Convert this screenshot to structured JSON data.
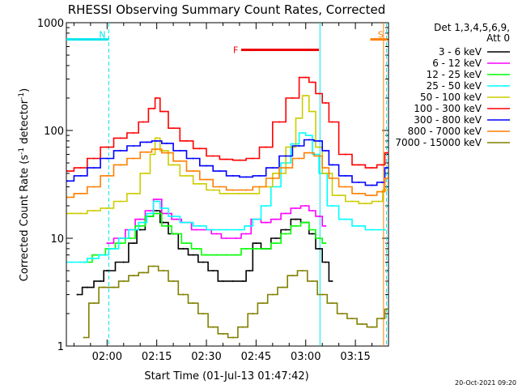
{
  "chart_data": {
    "type": "line",
    "title": "RHESSI Observing Summary Count Rates, Corrected",
    "xlabel": "Start Time (01-Jul-13 01:47:42)",
    "ylabel_main": "Corrected Count Rate (s",
    "ylabel_sup1": "-1",
    "ylabel_mid": " detector",
    "ylabel_sup2": "-1",
    "ylabel_end": ")",
    "y_scale": "log",
    "ylim": [
      1,
      1000
    ],
    "xlim_minutes": [
      107.7,
      205.0
    ],
    "x_ticks": [
      {
        "label": "02:00",
        "t": 120
      },
      {
        "label": "02:15",
        "t": 135
      },
      {
        "label": "02:30",
        "t": 150
      },
      {
        "label": "02:45",
        "t": 165
      },
      {
        "label": "03:00",
        "t": 180
      },
      {
        "label": "03:15",
        "t": 195
      }
    ],
    "y_ticks": [
      {
        "label": "1",
        "v": 1
      },
      {
        "label": "10",
        "v": 10
      },
      {
        "label": "100",
        "v": 100
      },
      {
        "label": "1000",
        "v": 1000
      }
    ],
    "legend_header": [
      "Det 1,3,4,5,6,9,",
      "Att 0"
    ],
    "legend_position": "top-right",
    "footer_date": "20-Oct-2021 09:20",
    "flags": [
      {
        "label": "N",
        "color": "#00e5ee",
        "t_start": 107.7,
        "t_end": 120.5,
        "y": 700
      },
      {
        "label": "F",
        "color": "#ee0000",
        "t_start": 160.5,
        "t_end": 184.0,
        "y": 560
      },
      {
        "label": "S",
        "color": "#ff7f00",
        "t_start": 199.5,
        "t_end": 204.7,
        "y": 700
      }
    ],
    "vertical_markers": [
      {
        "t": 120.5,
        "color": "#00e5ee",
        "dashed": true
      },
      {
        "t": 184.3,
        "color": "#00e5ee",
        "dashed": false
      },
      {
        "t": 203.5,
        "color": "#ff7f00",
        "dashed": false
      },
      {
        "t": 204.4,
        "color": "#00e5ee",
        "dashed": true
      }
    ],
    "series": [
      {
        "name": "3 - 6 keV",
        "color": "#000000",
        "x": [
          111,
          114,
          118,
          120,
          125,
          128,
          130,
          133,
          135,
          137,
          140,
          143,
          146,
          149,
          152,
          155,
          158,
          161,
          163,
          165,
          168,
          171,
          174,
          177,
          180,
          182,
          184,
          186,
          188
        ],
        "y": [
          3,
          3.5,
          4,
          5,
          6,
          9,
          12,
          16,
          18,
          14,
          11,
          8,
          7,
          6,
          5,
          4,
          4,
          4,
          5,
          9,
          8,
          10,
          12,
          15,
          14,
          11,
          8,
          6,
          4
        ]
      },
      {
        "name": "6 - 12 keV",
        "color": "#ff00ff",
        "x": [
          120,
          124,
          127,
          130,
          133,
          135,
          138,
          141,
          144,
          147,
          150,
          153,
          156,
          159,
          162,
          165,
          168,
          171,
          174,
          177,
          180,
          182,
          184,
          186
        ],
        "y": [
          9,
          10,
          12,
          15,
          18,
          23,
          17,
          15,
          14,
          12,
          12,
          11,
          10,
          10,
          11,
          15,
          14,
          15,
          17,
          19,
          20,
          18,
          16,
          13
        ]
      },
      {
        "name": "12 - 25 keV",
        "color": "#00ff00",
        "x": [
          113,
          118,
          121,
          124,
          127,
          130,
          133,
          135,
          138,
          141,
          144,
          147,
          150,
          153,
          156,
          159,
          162,
          165,
          168,
          171,
          174,
          177,
          180,
          182,
          184,
          186
        ],
        "y": [
          6,
          7,
          8,
          9,
          10,
          13,
          16,
          17,
          13,
          11,
          9,
          8,
          7,
          7,
          7,
          7,
          8,
          8,
          8,
          9,
          11,
          13,
          14,
          12,
          10,
          9
        ]
      },
      {
        "name": "25 - 50 keV",
        "color": "#00ffff",
        "x": [
          108,
          112,
          116,
          119,
          122,
          125,
          128,
          131,
          133,
          135,
          137,
          140,
          144,
          148,
          152,
          156,
          160,
          163,
          165,
          168,
          171,
          174,
          177,
          179,
          181,
          183,
          185,
          188,
          192,
          196,
          200,
          204
        ],
        "y": [
          6,
          6,
          6.5,
          7,
          8,
          10,
          12,
          14,
          17,
          22,
          19,
          16,
          14,
          13,
          12,
          12,
          12,
          13,
          15,
          20,
          30,
          50,
          75,
          95,
          90,
          60,
          40,
          20,
          15,
          13,
          12,
          12
        ]
      },
      {
        "name": "50 - 100 keV",
        "color": "#cccc00",
        "x": [
          108,
          112,
          116,
          120,
          124,
          128,
          132,
          134,
          135,
          137,
          140,
          144,
          148,
          152,
          156,
          160,
          164,
          168,
          172,
          176,
          178,
          180,
          182,
          184,
          186,
          190,
          194,
          198,
          202,
          204.5
        ],
        "y": [
          17,
          17,
          18,
          19,
          22,
          26,
          40,
          60,
          85,
          65,
          48,
          38,
          32,
          28,
          26,
          26,
          26,
          30,
          40,
          70,
          130,
          210,
          150,
          70,
          40,
          25,
          22,
          21,
          22,
          28
        ]
      },
      {
        "name": "100 - 300 keV",
        "color": "#ff0000",
        "x": [
          108,
          112,
          116,
          120,
          124,
          128,
          131,
          134,
          135,
          137,
          140,
          144,
          148,
          152,
          156,
          160,
          164,
          168,
          172,
          176,
          180,
          182,
          184,
          186,
          188,
          192,
          196,
          200,
          203,
          204.8
        ],
        "y": [
          42,
          45,
          55,
          70,
          85,
          95,
          120,
          160,
          200,
          150,
          105,
          80,
          68,
          58,
          54,
          53,
          55,
          70,
          120,
          200,
          310,
          280,
          220,
          180,
          120,
          60,
          48,
          45,
          48,
          62
        ]
      },
      {
        "name": "300 - 800 keV",
        "color": "#0000ff",
        "x": [
          108,
          112,
          116,
          120,
          124,
          128,
          132,
          135,
          138,
          142,
          146,
          150,
          154,
          158,
          162,
          166,
          170,
          174,
          178,
          181,
          184,
          186,
          188,
          192,
          196,
          200,
          203,
          204.8
        ],
        "y": [
          34,
          38,
          45,
          55,
          65,
          72,
          78,
          80,
          76,
          65,
          55,
          47,
          42,
          38,
          37,
          38,
          45,
          58,
          72,
          82,
          80,
          65,
          48,
          38,
          33,
          31,
          33,
          45
        ]
      },
      {
        "name": "800 - 7000 keV",
        "color": "#ff7f00",
        "x": [
          108,
          112,
          116,
          120,
          124,
          128,
          132,
          135,
          138,
          142,
          146,
          150,
          154,
          158,
          162,
          166,
          170,
          174,
          178,
          181,
          184,
          186,
          188,
          192,
          196,
          200,
          203,
          204.8
        ],
        "y": [
          24,
          26,
          30,
          38,
          48,
          55,
          63,
          67,
          62,
          52,
          42,
          35,
          30,
          28,
          28,
          30,
          36,
          45,
          55,
          62,
          58,
          45,
          36,
          30,
          26,
          25,
          27,
          36
        ]
      },
      {
        "name": "7000 - 15000 keV",
        "color": "#808000",
        "x": [
          113,
          116,
          119,
          122,
          125,
          128,
          131,
          134,
          137,
          140,
          143,
          146,
          149,
          152,
          155,
          158,
          161,
          164,
          167,
          170,
          173,
          176,
          179,
          182,
          185,
          188,
          191,
          194,
          197,
          200,
          203,
          204.8
        ],
        "y": [
          1.2,
          2.5,
          3.5,
          3.5,
          4,
          4.5,
          4.8,
          5.5,
          5,
          4,
          3,
          2.5,
          2,
          1.5,
          1.3,
          1.2,
          1.5,
          2,
          2.5,
          3,
          3.5,
          4.5,
          5,
          4,
          3,
          2.5,
          2,
          1.8,
          1.6,
          1.5,
          1.8,
          2.2
        ]
      }
    ]
  }
}
